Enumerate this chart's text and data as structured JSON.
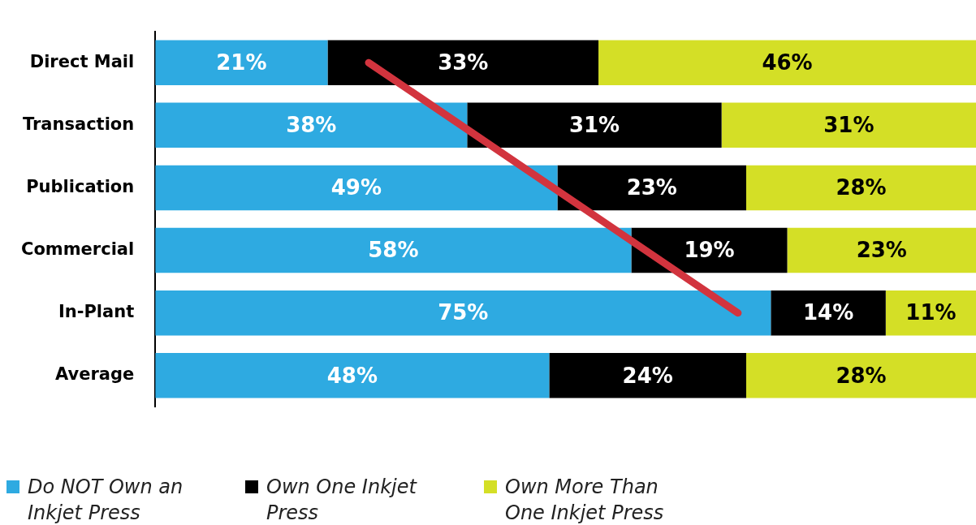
{
  "chart_data": {
    "type": "bar",
    "orientation": "horizontal",
    "stacked": true,
    "categories": [
      "Direct Mail",
      "Transaction",
      "Publication",
      "Commercial",
      "In-Plant",
      "Average"
    ],
    "series": [
      {
        "name": "Do NOT Own an Inkjet Press",
        "color": "#2eaae1",
        "values": [
          21,
          38,
          49,
          58,
          75,
          48
        ],
        "value_labels": [
          "21%",
          "38%",
          "49%",
          "58%",
          "75%",
          "48%"
        ]
      },
      {
        "name": "Own One Inkjet Press",
        "color": "#000000",
        "values": [
          33,
          31,
          23,
          19,
          14,
          24
        ],
        "value_labels": [
          "33%",
          "31%",
          "23%",
          "19%",
          "14%",
          "24%"
        ]
      },
      {
        "name": "Own More Than One Inkjet Press",
        "color": "#d4df26",
        "values": [
          46,
          31,
          28,
          23,
          11,
          28
        ],
        "value_labels": [
          "46%",
          "31%",
          "28%",
          "23%",
          "11%",
          "28%"
        ]
      },
      {
        "type": "line",
        "color": "#d2343e",
        "values": [
          26,
          null,
          null,
          null,
          71,
          null
        ]
      }
    ],
    "tick_labels": "y",
    "legend": "bottom"
  }
}
